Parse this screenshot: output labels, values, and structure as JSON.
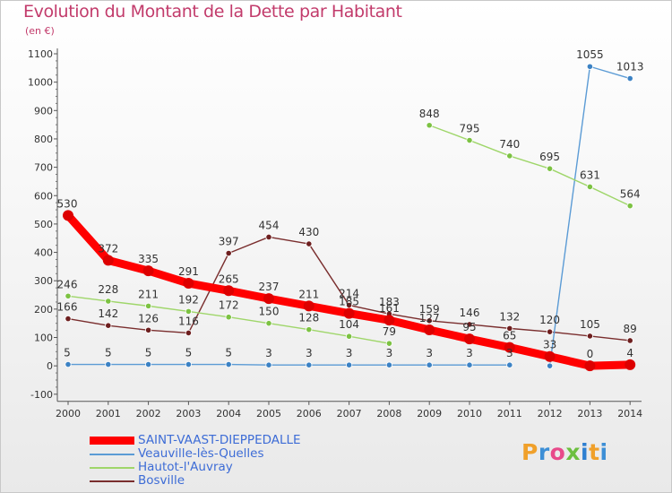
{
  "chart_data": {
    "type": "line",
    "title": "Evolution du Montant de la Dette par Habitant",
    "subtitle": "(en €)",
    "x": [
      "2000",
      "2001",
      "2002",
      "2003",
      "2004",
      "2005",
      "2006",
      "2007",
      "2008",
      "2009",
      "2010",
      "2011",
      "2012",
      "2013",
      "2014"
    ],
    "y_ticks": [
      -100,
      0,
      100,
      200,
      300,
      400,
      500,
      600,
      700,
      800,
      900,
      1000,
      1100
    ],
    "ylim": [
      -100,
      1100
    ],
    "grid": false,
    "legend_position": "bottom-left",
    "series": [
      {
        "name": "SAINT-VAAST-DIEPPEDALLE",
        "color": "#ff0000",
        "marker": "#dd0000",
        "values": [
          530,
          372,
          335,
          291,
          265,
          237,
          211,
          185,
          161,
          127,
          95,
          65,
          33,
          0,
          4
        ],
        "labels": [
          "530",
          "372",
          "335",
          "291",
          "265",
          "237",
          "211",
          "185",
          "161",
          "127",
          "95",
          "65",
          "33",
          "0",
          "4"
        ]
      },
      {
        "name": "Veauville-lès-Quelles",
        "color": "#5b9bd5",
        "marker": "#3c82c4",
        "values": [
          5,
          5,
          5,
          5,
          5,
          3,
          3,
          3,
          3,
          3,
          3,
          3,
          0,
          1055,
          1013
        ],
        "labels": [
          "5",
          "5",
          "5",
          "5",
          "5",
          "3",
          "3",
          "3",
          "3",
          "3",
          "3",
          "3",
          "",
          "1055",
          "1013"
        ]
      },
      {
        "name": "Hautot-l'Auvray",
        "color": "#9fd66a",
        "marker": "#7cc242",
        "values": [
          246,
          228,
          211,
          192,
          172,
          150,
          128,
          104,
          79,
          848,
          795,
          740,
          695,
          631,
          564
        ],
        "labels": [
          "246",
          "228",
          "211",
          "192",
          "172",
          "150",
          "128",
          "104",
          "79",
          "848",
          "795",
          "740",
          "695",
          "631",
          "564"
        ]
      },
      {
        "name": "Bosville",
        "color": "#7a2e2e",
        "marker": "#6e1f1f",
        "values": [
          166,
          142,
          126,
          116,
          397,
          454,
          430,
          214,
          183,
          159,
          146,
          132,
          120,
          105,
          89
        ],
        "labels": [
          "166",
          "142",
          "126",
          "116",
          "397",
          "454",
          "430",
          "214",
          "183",
          "159",
          "146",
          "132",
          "120",
          "105",
          "89"
        ]
      }
    ],
    "gaps": [
      {
        "series": 2,
        "after_index": 8
      },
      {
        "series": 1,
        "after_index": 11
      }
    ]
  },
  "brand": {
    "logo_text": "Proxiti",
    "logo_colors": [
      "#f0a02a",
      "#3d8fd6",
      "#e84a8a",
      "#6cbf3f",
      "#2e7fd1",
      "#f0a02a",
      "#3d8fd6"
    ]
  }
}
